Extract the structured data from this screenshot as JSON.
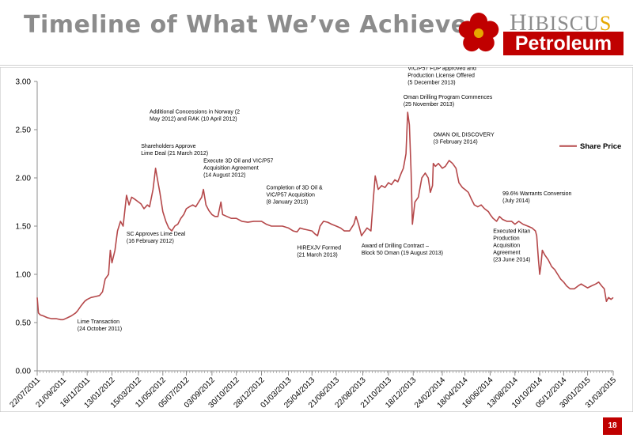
{
  "slide": {
    "title": "Timeline of What We’ve Achieved",
    "page_number": "18"
  },
  "logo": {
    "word1_prefix": "H",
    "word1_rest": "IBISCU",
    "word1_last": "S",
    "word2": "Petroleum",
    "colors": {
      "red": "#c00000",
      "gold": "#e6a800",
      "grey": "#8c8c8c"
    }
  },
  "chart_data": {
    "type": "line",
    "title": "",
    "xlabel": "",
    "ylabel": "",
    "ylim": [
      0,
      3
    ],
    "y_ticks": [
      "0.00",
      "0.50",
      "1.00",
      "1.50",
      "2.00",
      "2.50",
      "3.00"
    ],
    "x_tick_labels": [
      "22/07/2011",
      "21/09/2011",
      "16/11/2011",
      "13/01/2012",
      "15/03/2012",
      "11/05/2012",
      "05/07/2012",
      "03/09/2012",
      "30/10/2012",
      "28/12/2012",
      "01/03/2013",
      "25/04/2013",
      "21/06/2013",
      "22/08/2013",
      "21/10/2013",
      "18/12/2013",
      "24/02/2014",
      "18/04/2014",
      "16/06/2014",
      "13/08/2014",
      "10/10/2014",
      "05/12/2014",
      "30/01/2015",
      "31/03/2015"
    ],
    "grid": false,
    "legend_position": "right",
    "series": [
      {
        "name": "Share Price",
        "color": "#b5484a",
        "points": [
          [
            "2011-07-22",
            0.76
          ],
          [
            "2011-07-25",
            0.6
          ],
          [
            "2011-07-29",
            0.58
          ],
          [
            "2011-08-05",
            0.57
          ],
          [
            "2011-08-15",
            0.55
          ],
          [
            "2011-08-25",
            0.54
          ],
          [
            "2011-09-05",
            0.54
          ],
          [
            "2011-09-15",
            0.53
          ],
          [
            "2011-09-21",
            0.53
          ],
          [
            "2011-10-01",
            0.55
          ],
          [
            "2011-10-10",
            0.57
          ],
          [
            "2011-10-20",
            0.6
          ],
          [
            "2011-10-24",
            0.62
          ],
          [
            "2011-11-01",
            0.67
          ],
          [
            "2011-11-10",
            0.72
          ],
          [
            "2011-11-16",
            0.74
          ],
          [
            "2011-11-25",
            0.76
          ],
          [
            "2011-12-05",
            0.77
          ],
          [
            "2011-12-15",
            0.78
          ],
          [
            "2011-12-22",
            0.82
          ],
          [
            "2011-12-28",
            0.95
          ],
          [
            "2012-01-05",
            1.0
          ],
          [
            "2012-01-09",
            1.25
          ],
          [
            "2012-01-13",
            1.12
          ],
          [
            "2012-01-20",
            1.25
          ],
          [
            "2012-01-26",
            1.45
          ],
          [
            "2012-02-02",
            1.55
          ],
          [
            "2012-02-08",
            1.5
          ],
          [
            "2012-02-16",
            1.82
          ],
          [
            "2012-02-22",
            1.72
          ],
          [
            "2012-02-28",
            1.8
          ],
          [
            "2012-03-06",
            1.78
          ],
          [
            "2012-03-15",
            1.75
          ],
          [
            "2012-03-21",
            1.73
          ],
          [
            "2012-03-28",
            1.68
          ],
          [
            "2012-04-05",
            1.72
          ],
          [
            "2012-04-10",
            1.7
          ],
          [
            "2012-04-18",
            1.88
          ],
          [
            "2012-04-24",
            2.1
          ],
          [
            "2012-04-30",
            1.95
          ],
          [
            "2012-05-04",
            1.85
          ],
          [
            "2012-05-11",
            1.65
          ],
          [
            "2012-05-18",
            1.55
          ],
          [
            "2012-05-25",
            1.48
          ],
          [
            "2012-06-01",
            1.45
          ],
          [
            "2012-06-08",
            1.5
          ],
          [
            "2012-06-15",
            1.52
          ],
          [
            "2012-06-22",
            1.58
          ],
          [
            "2012-06-29",
            1.62
          ],
          [
            "2012-07-05",
            1.68
          ],
          [
            "2012-07-12",
            1.7
          ],
          [
            "2012-07-20",
            1.72
          ],
          [
            "2012-07-27",
            1.7
          ],
          [
            "2012-08-03",
            1.75
          ],
          [
            "2012-08-10",
            1.8
          ],
          [
            "2012-08-14",
            1.88
          ],
          [
            "2012-08-20",
            1.72
          ],
          [
            "2012-08-27",
            1.66
          ],
          [
            "2012-09-03",
            1.62
          ],
          [
            "2012-09-10",
            1.6
          ],
          [
            "2012-09-17",
            1.6
          ],
          [
            "2012-09-24",
            1.75
          ],
          [
            "2012-09-28",
            1.62
          ],
          [
            "2012-10-08",
            1.6
          ],
          [
            "2012-10-18",
            1.58
          ],
          [
            "2012-10-30",
            1.58
          ],
          [
            "2012-11-12",
            1.55
          ],
          [
            "2012-11-26",
            1.54
          ],
          [
            "2012-12-10",
            1.55
          ],
          [
            "2012-12-28",
            1.55
          ],
          [
            "2013-01-08",
            1.52
          ],
          [
            "2013-01-20",
            1.5
          ],
          [
            "2013-02-01",
            1.5
          ],
          [
            "2013-02-15",
            1.5
          ],
          [
            "2013-03-01",
            1.48
          ],
          [
            "2013-03-12",
            1.45
          ],
          [
            "2013-03-21",
            1.44
          ],
          [
            "2013-03-28",
            1.48
          ],
          [
            "2013-04-05",
            1.47
          ],
          [
            "2013-04-15",
            1.46
          ],
          [
            "2013-04-25",
            1.45
          ],
          [
            "2013-05-02",
            1.42
          ],
          [
            "2013-05-08",
            1.4
          ],
          [
            "2013-05-14",
            1.5
          ],
          [
            "2013-05-22",
            1.55
          ],
          [
            "2013-06-01",
            1.54
          ],
          [
            "2013-06-10",
            1.52
          ],
          [
            "2013-06-21",
            1.5
          ],
          [
            "2013-07-01",
            1.48
          ],
          [
            "2013-07-10",
            1.45
          ],
          [
            "2013-07-22",
            1.45
          ],
          [
            "2013-08-01",
            1.52
          ],
          [
            "2013-08-06",
            1.6
          ],
          [
            "2013-08-12",
            1.52
          ],
          [
            "2013-08-19",
            1.4
          ],
          [
            "2013-08-22",
            1.42
          ],
          [
            "2013-09-01",
            1.48
          ],
          [
            "2013-09-10",
            1.45
          ],
          [
            "2013-09-16",
            1.8
          ],
          [
            "2013-09-20",
            2.02
          ],
          [
            "2013-09-27",
            1.88
          ],
          [
            "2013-10-05",
            1.92
          ],
          [
            "2013-10-13",
            1.9
          ],
          [
            "2013-10-21",
            1.95
          ],
          [
            "2013-10-28",
            1.93
          ],
          [
            "2013-11-05",
            1.98
          ],
          [
            "2013-11-12",
            1.96
          ],
          [
            "2013-11-20",
            2.05
          ],
          [
            "2013-11-25",
            2.1
          ],
          [
            "2013-12-01",
            2.25
          ],
          [
            "2013-12-05",
            2.68
          ],
          [
            "2013-12-09",
            2.55
          ],
          [
            "2013-12-13",
            2.05
          ],
          [
            "2013-12-16",
            1.52
          ],
          [
            "2013-12-18",
            1.6
          ],
          [
            "2013-12-22",
            1.75
          ],
          [
            "2013-12-30",
            1.8
          ],
          [
            "2014-01-07",
            2.0
          ],
          [
            "2014-01-15",
            2.05
          ],
          [
            "2014-01-22",
            2.0
          ],
          [
            "2014-01-27",
            1.85
          ],
          [
            "2014-02-01",
            1.92
          ],
          [
            "2014-02-03",
            2.15
          ],
          [
            "2014-02-08",
            2.12
          ],
          [
            "2014-02-15",
            2.15
          ],
          [
            "2014-02-24",
            2.1
          ],
          [
            "2014-03-03",
            2.12
          ],
          [
            "2014-03-12",
            2.18
          ],
          [
            "2014-03-20",
            2.15
          ],
          [
            "2014-03-28",
            2.1
          ],
          [
            "2014-04-04",
            1.95
          ],
          [
            "2014-04-12",
            1.9
          ],
          [
            "2014-04-18",
            1.88
          ],
          [
            "2014-04-26",
            1.85
          ],
          [
            "2014-05-03",
            1.78
          ],
          [
            "2014-05-10",
            1.72
          ],
          [
            "2014-05-18",
            1.7
          ],
          [
            "2014-05-26",
            1.72
          ],
          [
            "2014-06-03",
            1.68
          ],
          [
            "2014-06-12",
            1.65
          ],
          [
            "2014-06-16",
            1.62
          ],
          [
            "2014-06-23",
            1.58
          ],
          [
            "2014-07-01",
            1.55
          ],
          [
            "2014-07-08",
            1.6
          ],
          [
            "2014-07-15",
            1.57
          ],
          [
            "2014-07-25",
            1.55
          ],
          [
            "2014-08-05",
            1.55
          ],
          [
            "2014-08-13",
            1.52
          ],
          [
            "2014-08-22",
            1.55
          ],
          [
            "2014-09-01",
            1.52
          ],
          [
            "2014-09-12",
            1.5
          ],
          [
            "2014-09-22",
            1.48
          ],
          [
            "2014-09-30",
            1.45
          ],
          [
            "2014-10-03",
            1.4
          ],
          [
            "2014-10-07",
            1.15
          ],
          [
            "2014-10-10",
            1.0
          ],
          [
            "2014-10-13",
            1.1
          ],
          [
            "2014-10-16",
            1.25
          ],
          [
            "2014-10-22",
            1.2
          ],
          [
            "2014-10-30",
            1.15
          ],
          [
            "2014-11-07",
            1.08
          ],
          [
            "2014-11-14",
            1.05
          ],
          [
            "2014-11-21",
            1.0
          ],
          [
            "2014-11-28",
            0.95
          ],
          [
            "2014-12-05",
            0.92
          ],
          [
            "2014-12-12",
            0.88
          ],
          [
            "2014-12-20",
            0.85
          ],
          [
            "2014-12-30",
            0.85
          ],
          [
            "2015-01-08",
            0.88
          ],
          [
            "2015-01-15",
            0.9
          ],
          [
            "2015-01-22",
            0.88
          ],
          [
            "2015-01-30",
            0.86
          ],
          [
            "2015-02-08",
            0.88
          ],
          [
            "2015-02-18",
            0.9
          ],
          [
            "2015-02-25",
            0.92
          ],
          [
            "2015-03-04",
            0.88
          ],
          [
            "2015-03-10",
            0.85
          ],
          [
            "2015-03-15",
            0.72
          ],
          [
            "2015-03-20",
            0.76
          ],
          [
            "2015-03-26",
            0.74
          ],
          [
            "2015-03-31",
            0.76
          ]
        ]
      }
    ],
    "annotations": [
      {
        "text": "Lime Transaction\n(24 October 2011)",
        "date": "2011-10-24",
        "value": 0.49
      },
      {
        "text": "SC Approves Lime Deal\n(16 February 2012)",
        "date": "2012-02-16",
        "value": 1.4
      },
      {
        "text": "Shareholders Approve\nLime Deal (21 March 2012)",
        "date": "2012-03-21",
        "value": 2.31
      },
      {
        "text": "Additional Concessions in Norway (2\nMay 2012) and RAK (10 April 2012)",
        "date": "2012-04-10",
        "value": 2.67
      },
      {
        "text": "Execute 3D Oil and VIC/P57\nAcquisition Agreement\n(14 August 2012)",
        "date": "2012-08-14",
        "value": 2.16
      },
      {
        "text": "Completion of 3D Oil &\nVIC/P57 Acquisition\n(8 January 2013)",
        "date": "2013-01-08",
        "value": 1.88
      },
      {
        "text": "HIREXJV Formed\n(21 March 2013)",
        "date": "2013-03-21",
        "value": 1.26
      },
      {
        "text": "Award of Drilling Contract –\nBlock 50 Oman (19 August 2013)",
        "date": "2013-08-19",
        "value": 1.28
      },
      {
        "text": "VIC/P57 FDP approved and\nProduction License Offered\n(5 December 2013)",
        "date": "2013-12-05",
        "value": 3.12
      },
      {
        "text": "Oman Drilling Program Commences\n(25 November 2013)",
        "date": "2013-11-25",
        "value": 2.82
      },
      {
        "text": "OMAN OIL DISCOVERY\n(3 February 2014)",
        "date": "2014-02-03",
        "value": 2.43
      },
      {
        "text": "99.6% Warrants Conversion\n(July 2014)",
        "date": "2014-07-15",
        "value": 1.82
      },
      {
        "text": "Executed Kitan\nProduction\nAcquisition\nAgreement\n(23 June 2014)",
        "date": "2014-06-23",
        "value": 1.43
      }
    ]
  }
}
